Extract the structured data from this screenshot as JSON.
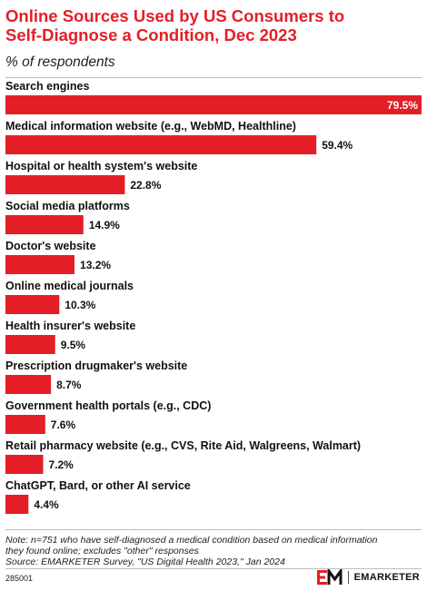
{
  "header": {
    "title_line1": "Online Sources Used by US Consumers to",
    "title_line2": "Self-Diagnose a Condition, Dec 2023",
    "subtitle": "% of respondents"
  },
  "chart_data": {
    "type": "bar",
    "orientation": "horizontal",
    "title": "Online Sources Used by US Consumers to Self-Diagnose a Condition, Dec 2023",
    "subtitle": "% of respondents",
    "xlim": [
      0,
      79.5
    ],
    "grid": false,
    "accent_color": "#e41e26",
    "categories": [
      "Search engines",
      "Medical information website (e.g., WebMD, Healthline)",
      "Hospital or health system's website",
      "Social media platforms",
      "Doctor's website",
      "Online medical journals",
      "Health insurer's website",
      "Prescription drugmaker's website",
      "Government health portals (e.g., CDC)",
      "Retail pharmacy website (e.g., CVS, Rite Aid, Walgreens, Walmart)",
      "ChatGPT, Bard, or other AI service"
    ],
    "values": [
      79.5,
      59.4,
      22.8,
      14.9,
      13.2,
      10.3,
      9.5,
      8.7,
      7.6,
      7.2,
      4.4
    ],
    "value_labels": [
      "79.5%",
      "59.4%",
      "22.8%",
      "14.9%",
      "13.2%",
      "10.3%",
      "9.5%",
      "8.7%",
      "7.6%",
      "7.2%",
      "4.4%"
    ]
  },
  "footer": {
    "note_line1": "Note: n=751 who have self-diagnosed a medical condition based on medical information",
    "note_line2": "they found online; excludes \"other\" responses",
    "source": "Source: EMARKETER Survey, \"US Digital Health 2023,\" Jan 2024",
    "chart_id": "285001",
    "brand": "EMARKETER",
    "brand_icon": "emarketer-logo-icon"
  }
}
